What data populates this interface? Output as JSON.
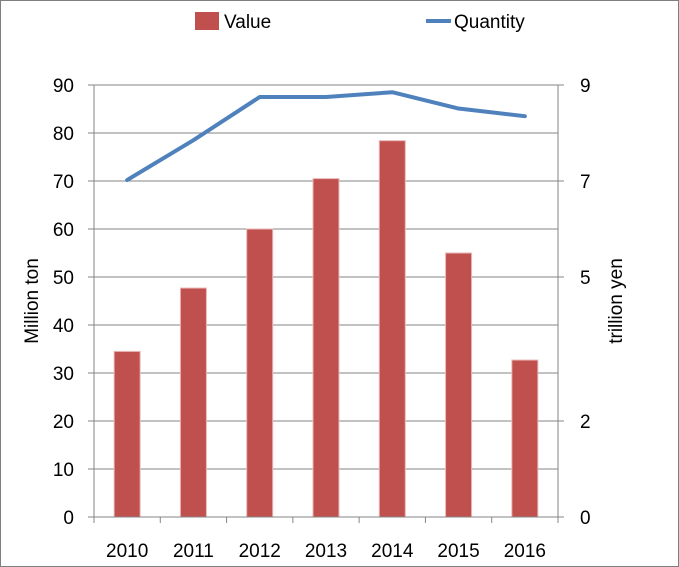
{
  "chart_data": {
    "type": "bar+line",
    "categories": [
      "2010",
      "2011",
      "2012",
      "2013",
      "2014",
      "2015",
      "2016"
    ],
    "series": [
      {
        "name": "Value",
        "type": "bar",
        "axis": "left",
        "color": "#c0504d",
        "values": [
          34.5,
          47.7,
          60.0,
          70.5,
          78.4,
          55.0,
          32.7
        ]
      },
      {
        "name": "Quantity",
        "type": "line",
        "axis": "left",
        "color": "#4f81bd",
        "values": [
          70.2,
          78.5,
          87.5,
          87.5,
          88.5,
          85.1,
          83.5
        ]
      }
    ],
    "xlabel": "",
    "ylabel": "Million ton",
    "ylim": [
      0,
      90
    ],
    "yticks": [
      "0",
      "10",
      "20",
      "30",
      "40",
      "50",
      "60",
      "70",
      "80",
      "90"
    ],
    "y2label": "trillion yen",
    "y2ticks": [
      {
        "label": "0",
        "value": 0
      },
      {
        "label": "2",
        "value": 2
      },
      {
        "label": "5",
        "value": 5
      },
      {
        "label": "7",
        "value": 7
      },
      {
        "label": "9",
        "value": 9
      }
    ],
    "y2lim": [
      0,
      9
    ],
    "legend_position": "top",
    "grid": true,
    "colors": {
      "grid": "#868686",
      "axis": "#868686"
    }
  }
}
